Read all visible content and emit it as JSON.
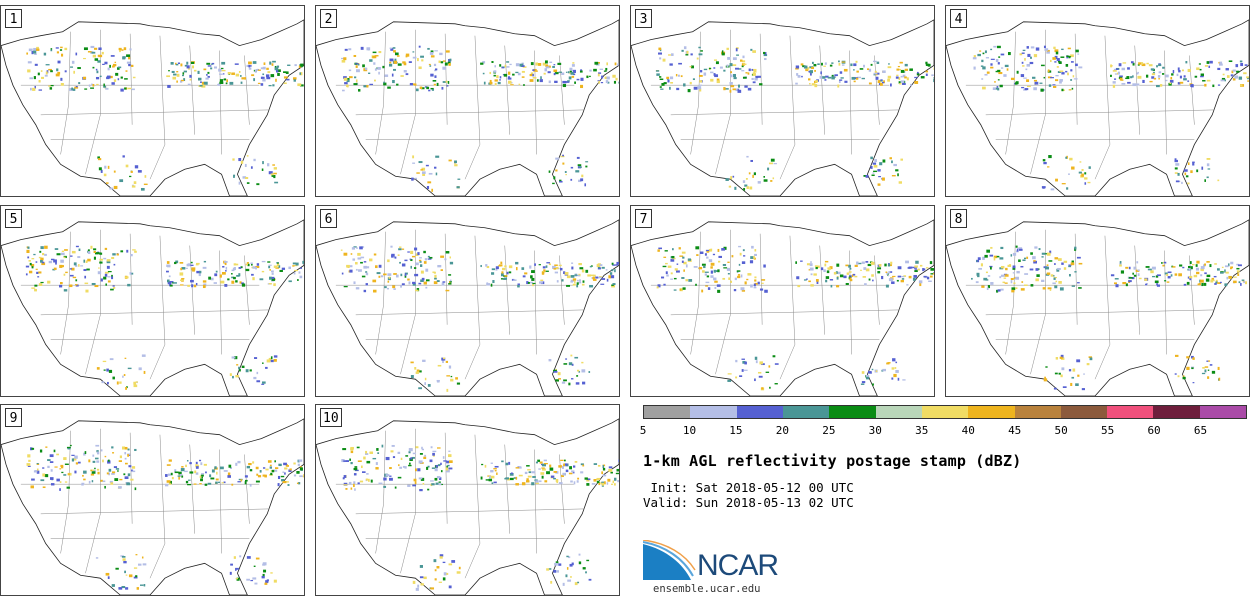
{
  "panels": [
    {
      "label": "1"
    },
    {
      "label": "2"
    },
    {
      "label": "3"
    },
    {
      "label": "4"
    },
    {
      "label": "5"
    },
    {
      "label": "6"
    },
    {
      "label": "7"
    },
    {
      "label": "8"
    },
    {
      "label": "9"
    },
    {
      "label": "10"
    }
  ],
  "legend": {
    "colors": [
      "#a0a0a0",
      "#b4bee6",
      "#5560d2",
      "#4a9696",
      "#0a8c14",
      "#b9d6b9",
      "#f0dc64",
      "#eeb41e",
      "#b9823c",
      "#8c5a3c",
      "#f0507c",
      "#6e1e3c",
      "#aa4ba8"
    ],
    "ticks": [
      "5",
      "10",
      "15",
      "20",
      "25",
      "30",
      "35",
      "40",
      "45",
      "50",
      "55",
      "60",
      "65"
    ]
  },
  "info": {
    "title": "1-km AGL reflectivity postage stamp (dBZ)",
    "init": " Init: Sat 2018-05-12 00 UTC",
    "valid": "Valid: Sun 2018-05-13 02 UTC"
  },
  "logo": {
    "text": "NCAR",
    "site": "ensemble.ucar.edu",
    "color": "#1d4a7a"
  }
}
